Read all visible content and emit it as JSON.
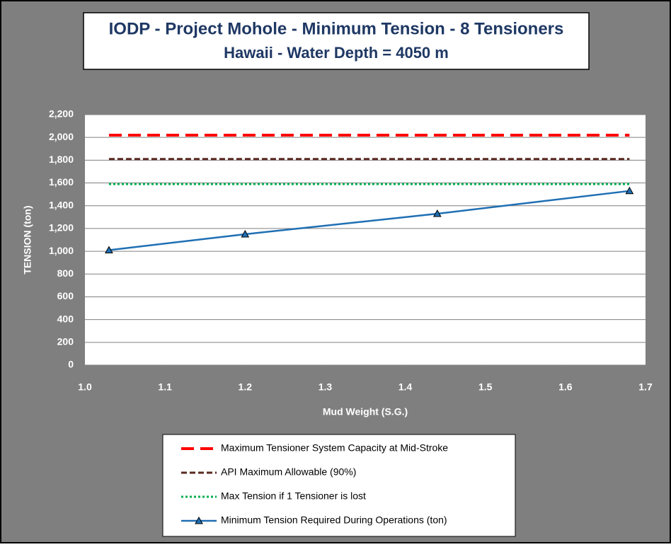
{
  "chart_data": {
    "type": "line",
    "title": "IODP - Project Mohole - Minimum Tension - 8 Tensioners",
    "subtitle": "Hawaii - Water Depth = 4050 m",
    "x_label": "Mud Weight (S.G.)",
    "y_label": "TENSION (ton)",
    "x": [
      1.03,
      1.2,
      1.44,
      1.68
    ],
    "series": [
      {
        "name": "Maximum Tensioner System Capacity at Mid-Stroke",
        "color": "#ff0000",
        "dash": "dashed",
        "values": [
          2020,
          2020,
          2020,
          2020
        ]
      },
      {
        "name": "API Maximum Allowable (90%)",
        "color": "#5a2a22",
        "dash": "short-dashed",
        "values": [
          1810,
          1810,
          1810,
          1810
        ]
      },
      {
        "name": "Max Tension if 1 Tensioner is lost",
        "color": "#00b050",
        "dash": "dotted",
        "values": [
          1590,
          1590,
          1590,
          1590
        ]
      },
      {
        "name": "Minimum Tension Required During Operations (ton)",
        "color": "#1f6fb4",
        "dash": "solid",
        "marker": "triangle",
        "values": [
          1010,
          1150,
          1330,
          1530
        ]
      }
    ],
    "xlim": [
      1.0,
      1.7
    ],
    "xticks": [
      {
        "value": 1.0,
        "label": "1.0"
      },
      1.1,
      1.2,
      1.3,
      1.4,
      1.5,
      1.6,
      1.7
    ],
    "ylim": [
      0,
      2200
    ],
    "yticks": [
      0,
      200,
      400,
      600,
      800,
      {
        "value": 1000,
        "label": "1,000"
      },
      {
        "value": 1200,
        "label": "1,200"
      },
      {
        "value": 1400,
        "label": "1,400"
      },
      {
        "value": 1600,
        "label": "1,600"
      },
      {
        "value": 1800,
        "label": "1,800"
      },
      {
        "value": 2000,
        "label": "2,000"
      },
      {
        "value": 2200,
        "label": "2,200"
      }
    ],
    "grid": true,
    "legend": "bottom"
  }
}
